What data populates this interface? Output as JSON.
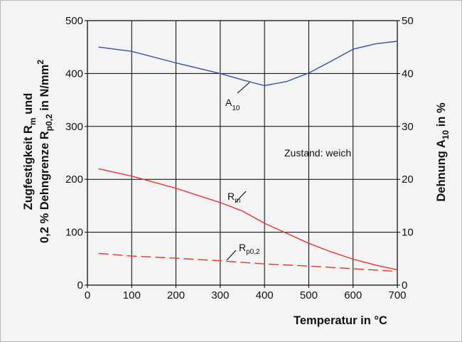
{
  "chart_data": {
    "type": "line",
    "x": [
      0,
      100,
      200,
      300,
      400,
      500,
      600,
      700
    ],
    "xlim": [
      0,
      700
    ],
    "ylim_left": [
      0,
      500
    ],
    "ylim_right": [
      0,
      50
    ],
    "xticks": [
      "0",
      "100",
      "200",
      "300",
      "400",
      "500",
      "600",
      "700"
    ],
    "yticks_left": [
      "0",
      "100",
      "200",
      "300",
      "400",
      "500"
    ],
    "yticks_right": [
      "0",
      "10",
      "20",
      "30",
      "40",
      "50"
    ],
    "grid": true,
    "xlabel": "Temperatur in °C",
    "ylabel_left": {
      "line1_pre": "Zugfestigkeit R",
      "line1_sub": "m",
      "line1_post": " und",
      "line2_pre": "0,2 % Dehngrenze R",
      "line2_sub": "p0,2",
      "line2_post": " in N/mm",
      "line2_sup": "2"
    },
    "ylabel_right": {
      "pre": "Dehnung A",
      "sub": "10",
      "post": " in %"
    },
    "annotation": "Zustand: weich",
    "series": [
      {
        "name": "A10",
        "label_main": "A",
        "label_sub": "10",
        "axis": "right",
        "color": "#3a4fa6",
        "dash": "solid",
        "points": [
          [
            25,
            45.0
          ],
          [
            100,
            44.2
          ],
          [
            200,
            42.0
          ],
          [
            300,
            40.0
          ],
          [
            350,
            38.8
          ],
          [
            400,
            37.7
          ],
          [
            450,
            38.5
          ],
          [
            500,
            40.1
          ],
          [
            550,
            42.3
          ],
          [
            600,
            44.6
          ],
          [
            650,
            45.6
          ],
          [
            700,
            46.1
          ]
        ]
      },
      {
        "name": "Rm",
        "label_main": "R",
        "label_sub": "m",
        "axis": "left",
        "color": "#e8342c",
        "dash": "solid",
        "points": [
          [
            25,
            220
          ],
          [
            100,
            206
          ],
          [
            200,
            183
          ],
          [
            300,
            156
          ],
          [
            350,
            140
          ],
          [
            400,
            117
          ],
          [
            450,
            98
          ],
          [
            500,
            79
          ],
          [
            550,
            63
          ],
          [
            600,
            49
          ],
          [
            650,
            38
          ],
          [
            700,
            29
          ]
        ]
      },
      {
        "name": "Rp0,2",
        "label_main": "R",
        "label_sub": "p0,2",
        "axis": "left",
        "color": "#e8342c",
        "dash": "dashed",
        "points": [
          [
            25,
            60
          ],
          [
            100,
            55
          ],
          [
            200,
            51
          ],
          [
            300,
            46
          ],
          [
            400,
            40
          ],
          [
            500,
            36
          ],
          [
            600,
            31
          ],
          [
            700,
            26
          ]
        ]
      }
    ]
  }
}
